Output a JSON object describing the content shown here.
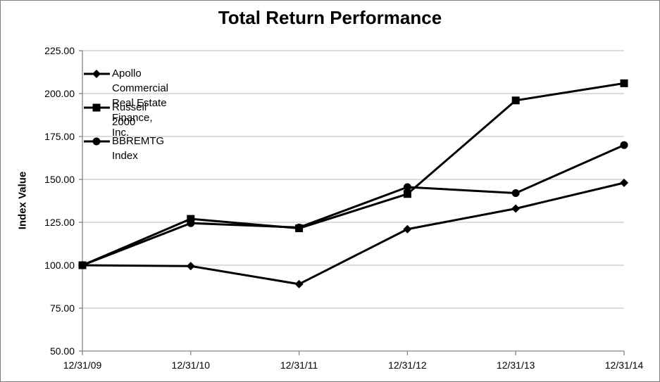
{
  "chart_data": {
    "type": "line",
    "title": "Total Return Performance",
    "ylabel": "Index Value",
    "xlabel": "",
    "ylim": [
      50,
      225
    ],
    "y_ticks": [
      {
        "value": 50,
        "label": "50.00"
      },
      {
        "value": 75,
        "label": "75.00"
      },
      {
        "value": 100,
        "label": "100.00"
      },
      {
        "value": 125,
        "label": "125.00"
      },
      {
        "value": 150,
        "label": "150.00"
      },
      {
        "value": 175,
        "label": "175.00"
      },
      {
        "value": 200,
        "label": "200.00"
      },
      {
        "value": 225,
        "label": "225.00"
      }
    ],
    "categories": [
      "12/31/09",
      "12/31/10",
      "12/31/11",
      "12/31/12",
      "12/31/13",
      "12/31/14"
    ],
    "series": [
      {
        "name": "Apollo Commercial Real Estate Finance, Inc.",
        "legend_lines": [
          "Apollo Commercial Real Estate Finance,",
          "Inc."
        ],
        "marker": "diamond",
        "values": [
          100.0,
          99.5,
          89.0,
          121.0,
          133.0,
          148.0
        ]
      },
      {
        "name": "Russell 2000",
        "legend_lines": [
          "Russell 2000"
        ],
        "marker": "square",
        "values": [
          100.0,
          127.0,
          121.5,
          141.5,
          196.0,
          206.0
        ]
      },
      {
        "name": "BBREMTG Index",
        "legend_lines": [
          "BBREMTG Index"
        ],
        "marker": "circle",
        "values": [
          100.0,
          124.5,
          122.0,
          145.5,
          142.0,
          170.0
        ]
      }
    ],
    "grid": "horizontal",
    "legend_position": "inside-top-left",
    "series_color": "#000000",
    "gridline_color": "#b9b9b9",
    "axis_color": "#848484"
  }
}
